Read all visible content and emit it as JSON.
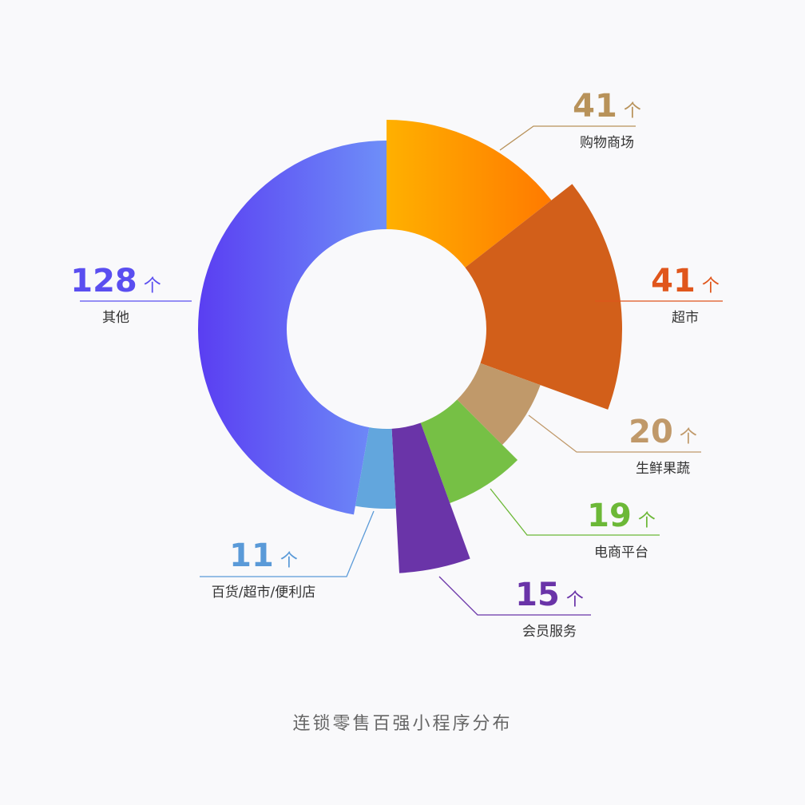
{
  "chart_data": {
    "type": "pie",
    "variant": "rose-donut",
    "title": "连锁零售百强小程序分布",
    "unit": "个",
    "categories": [
      "购物商场",
      "超市",
      "生鲜果蔬",
      "电商平台",
      "会员服务",
      "百货/超市/便利店",
      "其他"
    ],
    "values": [
      41,
      41,
      20,
      19,
      15,
      11,
      128
    ],
    "colors": {
      "购物商场": "#ff9a00",
      "超市": "#d25f1a",
      "生鲜果蔬": "#c0996a",
      "电商平台": "#76c045",
      "会员服务": "#6a34a8",
      "百货/超市/便利店": "#62a6dd",
      "其他": "#6272f2"
    },
    "label_colors": {
      "购物商场": "#b8925a",
      "超市": "#e0561c",
      "生鲜果蔬": "#c0996a",
      "电商平台": "#6cb837",
      "会员服务": "#6a34a8",
      "百货/超市/便利店": "#5a9ad8",
      "其他": "#5a4ef0"
    },
    "legend": "none"
  }
}
